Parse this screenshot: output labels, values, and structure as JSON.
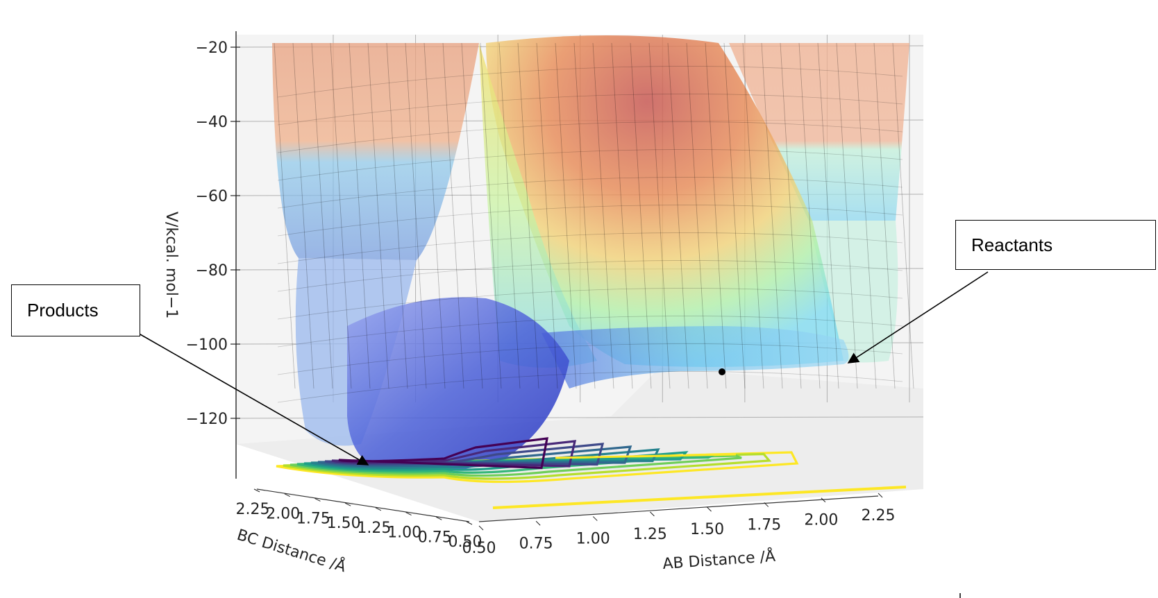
{
  "chart_data": {
    "type": "surface",
    "projection": "3d",
    "title": "",
    "xlabel": "AB Distance /Å",
    "ylabel": "BC Distance /Å",
    "zlabel": "V/kcal. mol−1",
    "x_ticks": [
      "0.50",
      "0.75",
      "1.00",
      "1.25",
      "1.50",
      "1.75",
      "2.00",
      "2.25"
    ],
    "y_ticks": [
      "2.25",
      "2.00",
      "1.75",
      "1.50",
      "1.25",
      "1.00",
      "0.75",
      "0.50"
    ],
    "z_ticks": [
      "−20",
      "−40",
      "−60",
      "−80",
      "−100",
      "−120"
    ],
    "xlim": [
      0.5,
      2.4
    ],
    "ylim": [
      0.5,
      2.4
    ],
    "zlim": [
      -135,
      -20
    ],
    "colormap_surface": "jet (transparent)",
    "colormap_contour": "viridis",
    "grid": true,
    "annotations": [
      {
        "text": "Products",
        "target": "product valley minimum (small AB, large BC)"
      },
      {
        "text": "Reactants",
        "target": "reactant valley (large AB, small BC)"
      }
    ]
  },
  "labels": {
    "products": "Products",
    "reactants": "Reactants"
  },
  "colors": {
    "pane": "#f2f2f2",
    "grid": "#b0b0b0",
    "arrow": "#000000"
  }
}
